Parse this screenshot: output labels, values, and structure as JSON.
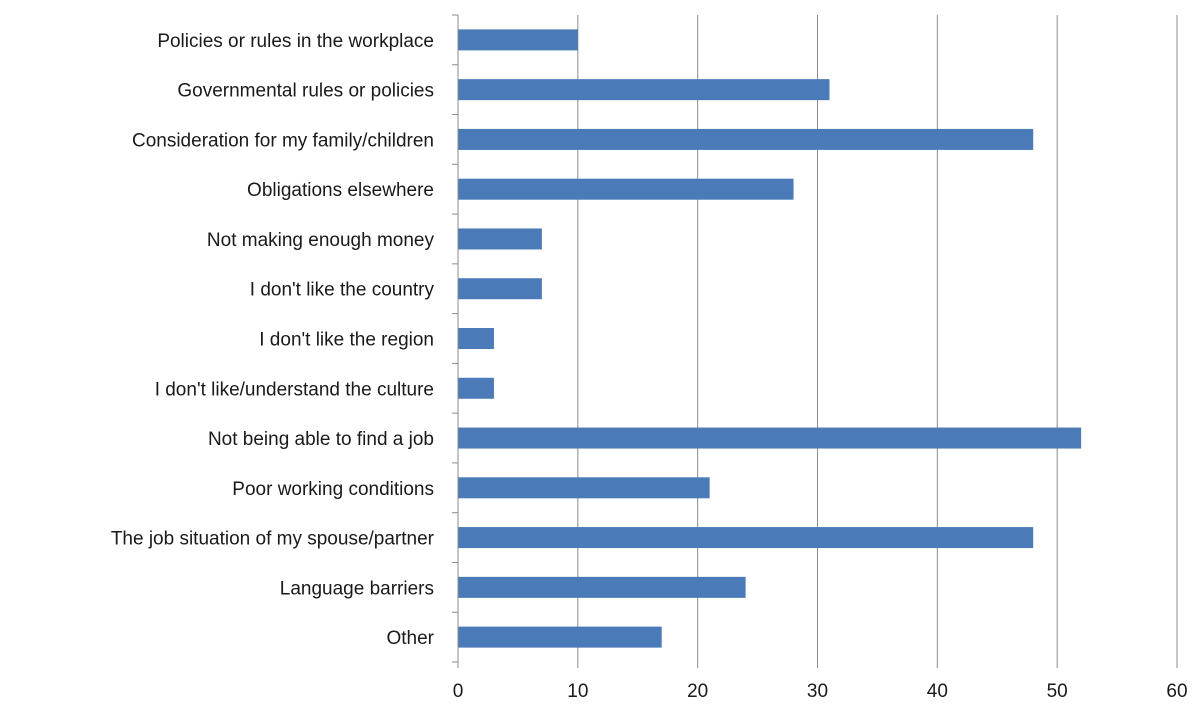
{
  "chart_data": {
    "type": "bar",
    "orientation": "horizontal",
    "title": "",
    "xlabel": "",
    "ylabel": "",
    "xlim": [
      0,
      60
    ],
    "x_ticks": [
      0,
      10,
      20,
      30,
      40,
      50,
      60
    ],
    "grid": "vertical major gridlines",
    "legend": "none",
    "bar_color": "#4a7ab8",
    "categories": [
      "Policies or rules in the workplace",
      "Governmental rules or policies",
      "Consideration for my family/children",
      "Obligations elsewhere",
      "Not making enough money",
      "I don't like the country",
      "I don't like the region",
      "I don't like/understand the culture",
      "Not being able to find a job",
      "Poor working conditions",
      "The job situation of my spouse/partner",
      "Language barriers",
      "Other"
    ],
    "values": [
      10,
      31,
      48,
      28,
      7,
      7,
      3,
      3,
      52,
      21,
      48,
      24,
      17
    ]
  }
}
